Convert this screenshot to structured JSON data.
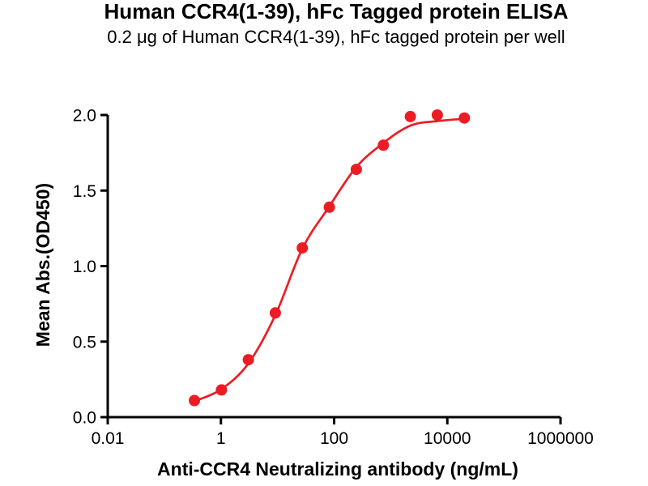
{
  "header": {
    "title": "Human CCR4(1-39), hFc Tagged protein ELISA",
    "subtitle": "0.2 μg of Human CCR4(1-39), hFc tagged protein per well"
  },
  "colors": {
    "series_red": "#ED1C24",
    "axis_black": "#000000",
    "background": "#FFFFFF"
  },
  "chart_data": {
    "type": "scatter",
    "title": "Human CCR4(1-39), hFc Tagged protein ELISA",
    "subtitle": "0.2 μg of Human CCR4(1-39), hFc tagged protein per well",
    "xlabel": "Anti-CCR4 Neutralizing antibody (ng/mL)",
    "ylabel": "Mean Abs.(OD450)",
    "x_scale": "log10",
    "xlim": [
      0.01,
      1000000
    ],
    "ylim": [
      0.0,
      2.0
    ],
    "grid": false,
    "legend": "none",
    "x_ticks": {
      "values": [
        0.01,
        1,
        100,
        10000,
        1000000
      ],
      "labels": [
        "0.01",
        "1",
        "100",
        "10000",
        "1000000"
      ]
    },
    "y_ticks": {
      "values": [
        0.0,
        0.5,
        1.0,
        1.5,
        2.0
      ],
      "labels": [
        "0.0",
        "0.5",
        "1.0",
        "1.5",
        "2.0"
      ]
    },
    "series": [
      {
        "marker": "circle",
        "marker_radius": 7,
        "color": "#ED1C24",
        "x": [
          0.34,
          1.02,
          3.05,
          9.14,
          27.4,
          82.3,
          247,
          741,
          2222,
          6667,
          20000
        ],
        "y": [
          0.11,
          0.18,
          0.38,
          0.69,
          1.12,
          1.39,
          1.64,
          1.8,
          1.99,
          2.0,
          1.98
        ]
      }
    ],
    "fit_curve": {
      "shape": "sigmoidal",
      "color": "#ED1C24",
      "x": [
        0.34,
        1.02,
        3.05,
        9.14,
        27.4,
        82.3,
        247,
        741,
        2222,
        6667,
        20000
      ],
      "y": [
        0.105,
        0.185,
        0.355,
        0.675,
        1.115,
        1.395,
        1.655,
        1.815,
        1.93,
        1.96,
        1.975
      ]
    }
  }
}
